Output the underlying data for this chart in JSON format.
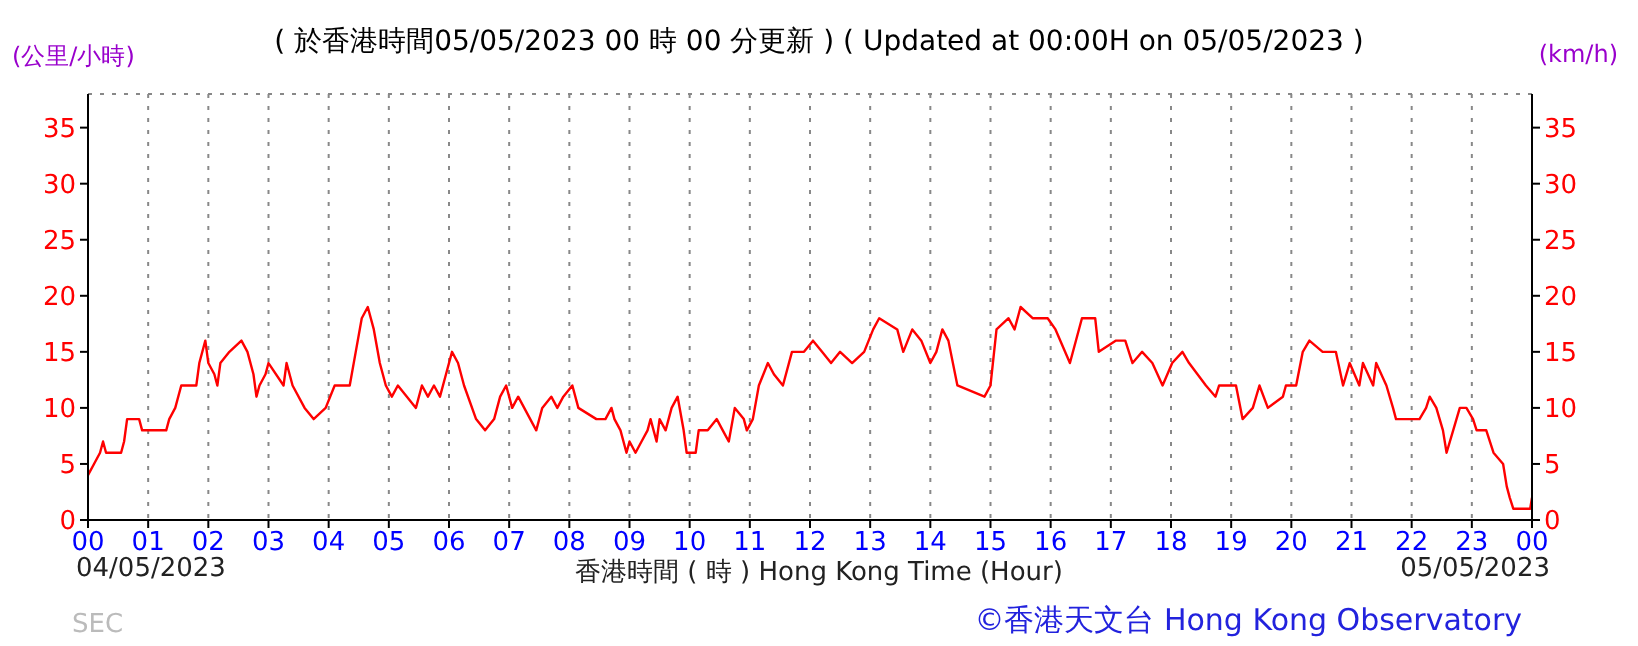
{
  "chart_data": {
    "type": "line",
    "title": "( 於香港時間05/05/2023 00 時 00 分更新 ) ( Updated at 00:00H on 05/05/2023 )",
    "xlabel": "香港時間 ( 時 ) Hong Kong Time (Hour)",
    "ylabel": "(公里/小時)",
    "y2label": "(km/h)",
    "annotations": [
      "04/05/2023",
      "05/05/2023",
      "©香港天文台 Hong Kong Observatory",
      "SEC"
    ],
    "xlim": [
      0,
      24
    ],
    "xticks": [
      {
        "value": 0,
        "label": "00"
      },
      {
        "value": 1,
        "label": "01"
      },
      {
        "value": 2,
        "label": "02"
      },
      {
        "value": 3,
        "label": "03"
      },
      {
        "value": 4,
        "label": "04"
      },
      {
        "value": 5,
        "label": "05"
      },
      {
        "value": 6,
        "label": "06"
      },
      {
        "value": 7,
        "label": "07"
      },
      {
        "value": 8,
        "label": "08"
      },
      {
        "value": 9,
        "label": "09"
      },
      {
        "value": 10,
        "label": "10"
      },
      {
        "value": 11,
        "label": "11"
      },
      {
        "value": 12,
        "label": "12"
      },
      {
        "value": 13,
        "label": "13"
      },
      {
        "value": 14,
        "label": "14"
      },
      {
        "value": 15,
        "label": "15"
      },
      {
        "value": 16,
        "label": "16"
      },
      {
        "value": 17,
        "label": "17"
      },
      {
        "value": 18,
        "label": "18"
      },
      {
        "value": 19,
        "label": "19"
      },
      {
        "value": 20,
        "label": "20"
      },
      {
        "value": 21,
        "label": "21"
      },
      {
        "value": 22,
        "label": "22"
      },
      {
        "value": 23,
        "label": "23"
      },
      {
        "value": 24,
        "label": "00"
      }
    ],
    "ylim": [
      0,
      38
    ],
    "yticks": [
      0,
      5,
      10,
      15,
      20,
      25,
      30,
      35
    ],
    "y2lim": [
      0,
      38
    ],
    "y2ticks": [
      0,
      5,
      10,
      15,
      20,
      25,
      30,
      35
    ],
    "grid": true,
    "marker": "none",
    "series": [
      {
        "color": "#ff0000",
        "x": [
          0,
          0.1,
          0.2,
          0.25,
          0.3,
          0.55,
          0.6,
          0.65,
          0.85,
          0.9,
          1.3,
          1.35,
          1.45,
          1.55,
          1.8,
          1.85,
          1.95,
          2.0,
          2.1,
          2.15,
          2.2,
          2.35,
          2.55,
          2.65,
          2.75,
          2.8,
          2.85,
          2.95,
          3.0,
          3.25,
          3.3,
          3.4,
          3.6,
          3.75,
          3.95,
          4.1,
          4.35,
          4.45,
          4.55,
          4.65,
          4.75,
          4.85,
          4.95,
          5.05,
          5.15,
          5.45,
          5.55,
          5.65,
          5.75,
          5.85,
          5.95,
          6.05,
          6.15,
          6.25,
          6.45,
          6.6,
          6.75,
          6.85,
          6.95,
          7.05,
          7.15,
          7.25,
          7.45,
          7.55,
          7.7,
          7.8,
          7.9,
          8.05,
          8.15,
          8.45,
          8.6,
          8.7,
          8.75,
          8.85,
          8.95,
          9.0,
          9.1,
          9.2,
          9.3,
          9.35,
          9.45,
          9.5,
          9.6,
          9.7,
          9.8,
          9.9,
          9.95,
          10.1,
          10.15,
          10.3,
          10.45,
          10.55,
          10.65,
          10.75,
          10.9,
          10.95,
          11.05,
          11.15,
          11.3,
          11.4,
          11.55,
          11.7,
          11.9,
          12.05,
          12.2,
          12.35,
          12.5,
          12.7,
          12.9,
          13.05,
          13.15,
          13.45,
          13.55,
          13.7,
          13.85,
          14.0,
          14.1,
          14.2,
          14.3,
          14.45,
          14.9,
          15.0,
          15.1,
          15.3,
          15.4,
          15.5,
          15.7,
          15.95,
          16.08,
          16.32,
          16.52,
          16.74,
          16.8,
          17.08,
          17.24,
          17.36,
          17.52,
          17.69,
          17.86,
          18.02,
          18.19,
          18.3,
          18.58,
          18.74,
          18.8,
          19.08,
          19.19,
          19.36,
          19.47,
          19.61,
          19.86,
          19.91,
          20.08,
          20.19,
          20.3,
          20.52,
          20.74,
          20.86,
          20.97,
          21.13,
          21.19,
          21.36,
          21.41,
          21.58,
          21.69,
          21.74,
          22.13,
          22.24,
          22.3,
          22.41,
          22.52,
          22.58,
          22.69,
          22.8,
          22.91,
          23.02,
          23.08,
          23.24,
          23.36,
          23.52,
          23.58,
          23.63,
          23.69,
          23.97,
          24.0
        ],
        "values": [
          4,
          5,
          6,
          7,
          6,
          6,
          7,
          9,
          9,
          8,
          8,
          9,
          10,
          12,
          12,
          14,
          16,
          14,
          13,
          12,
          14,
          15,
          16,
          15,
          13,
          11,
          12,
          13,
          14,
          12,
          14,
          12,
          10,
          9,
          10,
          12,
          12,
          15,
          18,
          19,
          17,
          14,
          12,
          11,
          12,
          10,
          12,
          11,
          12,
          11,
          13,
          15,
          14,
          12,
          9,
          8,
          9,
          11,
          12,
          10,
          11,
          10,
          8,
          10,
          11,
          10,
          11,
          12,
          10,
          9,
          9,
          10,
          9,
          8,
          6,
          7,
          6,
          7,
          8,
          9,
          7,
          9,
          8,
          10,
          11,
          8,
          6,
          6,
          8,
          8,
          9,
          8,
          7,
          10,
          9,
          8,
          9,
          12,
          14,
          13,
          12,
          15,
          15,
          16,
          15,
          14,
          15,
          14,
          15,
          17,
          18,
          17,
          15,
          17,
          16,
          14,
          15,
          17,
          16,
          12,
          11,
          12,
          17,
          18,
          17,
          19,
          18,
          18,
          17,
          14,
          18,
          18,
          15,
          16,
          16,
          14,
          15,
          14,
          12,
          14,
          15,
          14,
          12,
          11,
          12,
          12,
          9,
          10,
          12,
          10,
          11,
          12,
          12,
          15,
          16,
          15,
          15,
          12,
          14,
          12,
          14,
          12,
          14,
          12,
          10,
          9,
          9,
          10,
          11,
          10,
          8,
          6,
          8,
          10,
          10,
          9,
          8,
          8,
          6,
          5,
          3,
          2,
          1,
          1,
          2
        ]
      }
    ]
  }
}
